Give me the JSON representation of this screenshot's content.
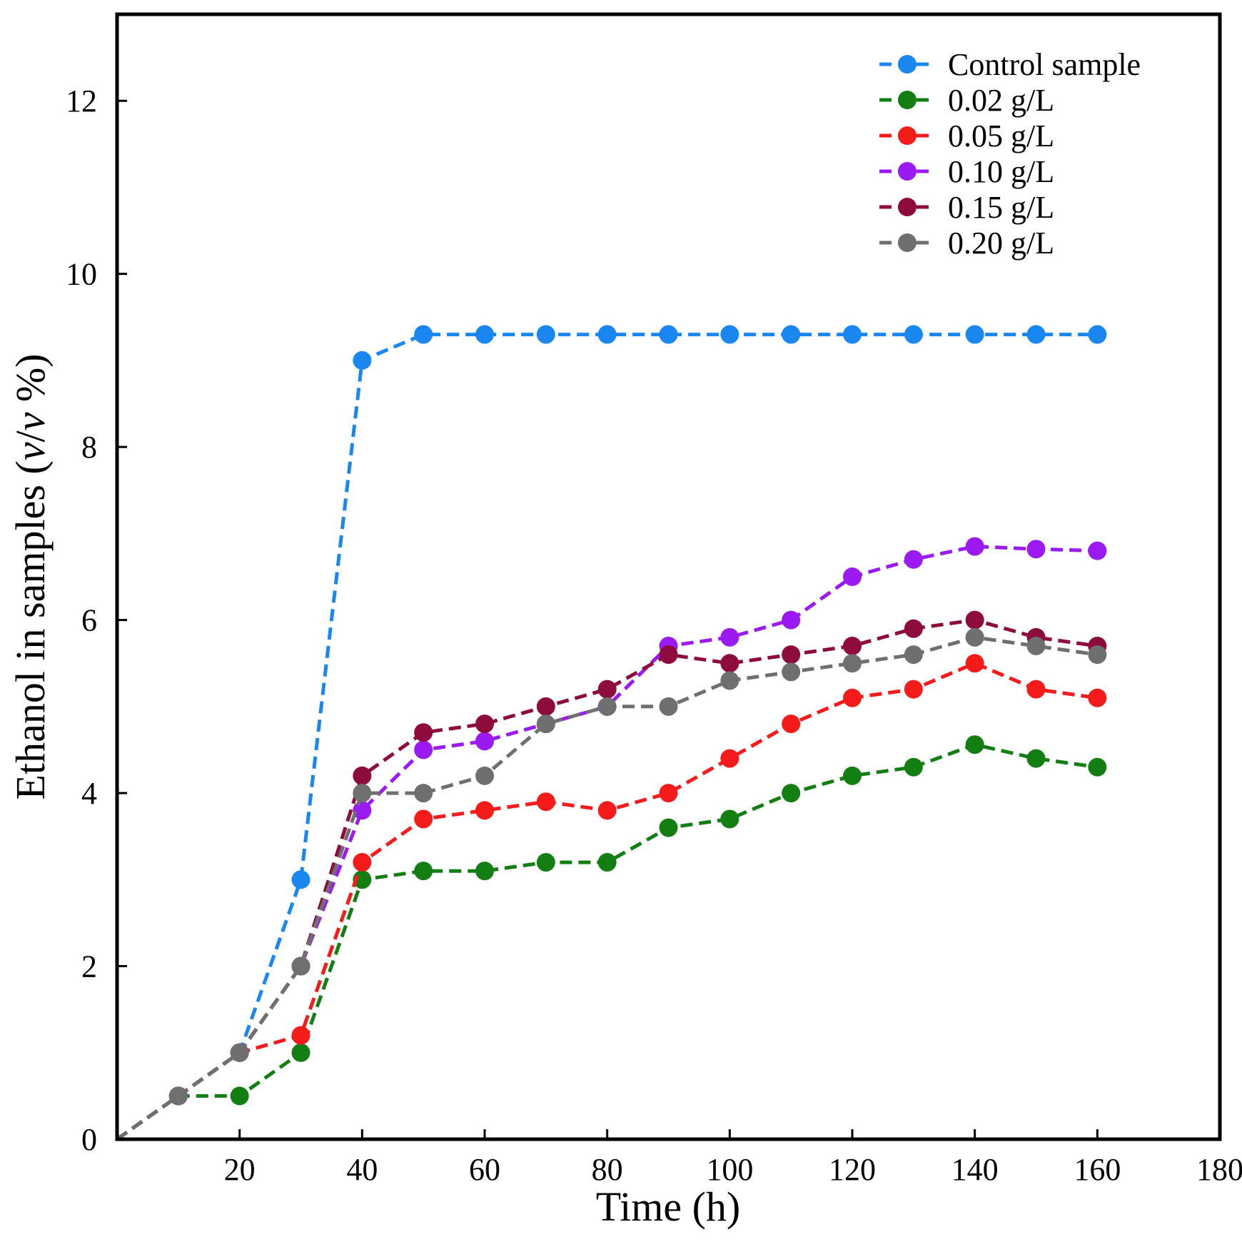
{
  "chart_data": {
    "type": "line",
    "title": "",
    "xlabel": "Time (h)",
    "ylabel_parts": [
      "Ethanol in samples (",
      "v",
      "/",
      "v",
      " %)"
    ],
    "xlim": [
      0,
      180
    ],
    "ylim": [
      0,
      13
    ],
    "xticks": [
      20,
      40,
      60,
      80,
      100,
      120,
      140,
      160,
      180
    ],
    "yticks": [
      0,
      2,
      4,
      6,
      8,
      10,
      12
    ],
    "legend_position": "top-right",
    "grid": false,
    "x": [
      0,
      10,
      20,
      30,
      40,
      50,
      60,
      70,
      80,
      90,
      100,
      110,
      120,
      130,
      140,
      150,
      160
    ],
    "series": [
      {
        "name": "Control sample",
        "color": "#1a86f0",
        "values": [
          0,
          0.5,
          1.0,
          3.0,
          9.0,
          9.3,
          9.3,
          9.3,
          9.3,
          9.3,
          9.3,
          9.3,
          9.3,
          9.3,
          9.3,
          9.3,
          9.3
        ]
      },
      {
        "name": "0.02 g/L",
        "color": "#137f13",
        "values": [
          0,
          0.5,
          0.5,
          1.0,
          3.0,
          3.1,
          3.1,
          3.2,
          3.2,
          3.6,
          3.7,
          4.0,
          4.2,
          4.3,
          4.56,
          4.4,
          4.3
        ]
      },
      {
        "name": "0.05 g/L",
        "color": "#f41b1b",
        "values": [
          0,
          0.5,
          1.0,
          1.2,
          3.2,
          3.7,
          3.8,
          3.9,
          3.8,
          4.0,
          4.4,
          4.8,
          5.1,
          5.2,
          5.5,
          5.2,
          5.1
        ]
      },
      {
        "name": "0.10 g/L",
        "color": "#9b1af2",
        "values": [
          0,
          0.5,
          1.0,
          2.0,
          3.8,
          4.5,
          4.6,
          4.8,
          5.0,
          5.7,
          5.8,
          6.0,
          6.5,
          6.7,
          6.85,
          6.82,
          6.8
        ]
      },
      {
        "name": "0.15 g/L",
        "color": "#8e0b3d",
        "values": [
          0,
          0.5,
          1.0,
          2.0,
          4.2,
          4.7,
          4.8,
          5.0,
          5.2,
          5.6,
          5.5,
          5.6,
          5.7,
          5.9,
          6.0,
          5.8,
          5.7
        ]
      },
      {
        "name": "0.20 g/L",
        "color": "#6f6f6f",
        "values": [
          0,
          0.5,
          1.0,
          2.0,
          4.0,
          4.0,
          4.2,
          4.8,
          5.0,
          5.0,
          5.3,
          5.4,
          5.5,
          5.6,
          5.8,
          5.7,
          5.6
        ]
      }
    ]
  }
}
